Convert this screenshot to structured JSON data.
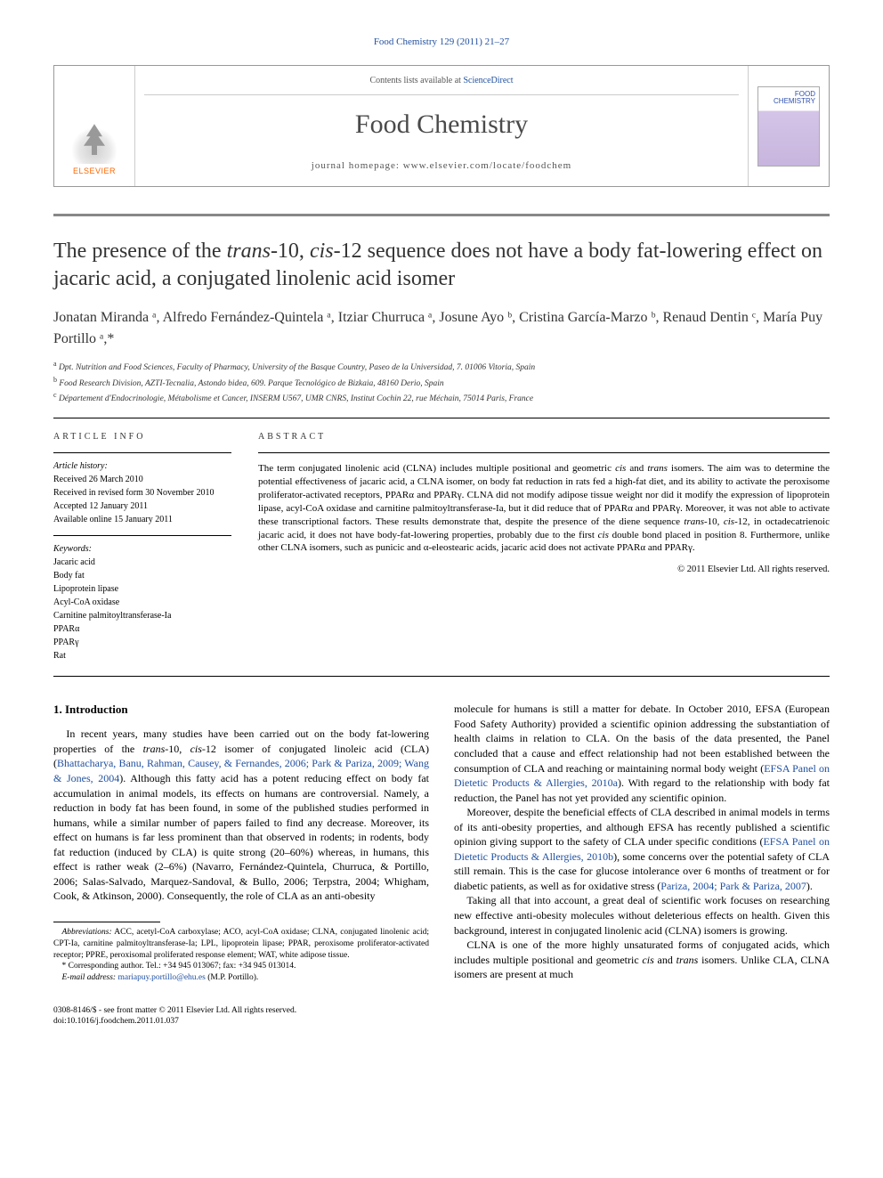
{
  "top_reference": "Food Chemistry 129 (2011) 21–27",
  "header": {
    "contents_prefix": "Contents lists available at ",
    "contents_link": "ScienceDirect",
    "journal": "Food Chemistry",
    "homepage_prefix": "journal homepage: ",
    "homepage_url": "www.elsevier.com/locate/foodchem",
    "publisher_label": "ELSEVIER",
    "cover_title_1": "FOOD",
    "cover_title_2": "CHEMISTRY"
  },
  "title": {
    "pre": "The presence of the ",
    "seq1": "trans",
    "mid1": "-10, ",
    "seq2": "cis",
    "post": "-12 sequence does not have a body fat-lowering effect on jacaric acid, a conjugated linolenic acid isomer"
  },
  "authors_line": "Jonatan Miranda ᵃ, Alfredo Fernández-Quintela ᵃ, Itziar Churruca ᵃ, Josune Ayo ᵇ, Cristina García-Marzo ᵇ, Renaud Dentin ᶜ, María Puy Portillo ᵃ,*",
  "affiliations": [
    {
      "sup": "a",
      "text": "Dpt. Nutrition and Food Sciences, Faculty of Pharmacy, University of the Basque Country, Paseo de la Universidad, 7. 01006 Vitoria, Spain"
    },
    {
      "sup": "b",
      "text": "Food Research Division, AZTI-Tecnalia, Astondo bidea, 609. Parque Tecnológico de Bizkaia, 48160 Derio, Spain"
    },
    {
      "sup": "c",
      "text": "Département d'Endocrinologie, Métabolisme et Cancer, INSERM U567, UMR CNRS, Institut Cochin 22, rue Méchain, 75014 Paris, France"
    }
  ],
  "article_info": {
    "heading": "ARTICLE INFO",
    "history_head": "Article history:",
    "history": [
      "Received 26 March 2010",
      "Received in revised form 30 November 2010",
      "Accepted 12 January 2011",
      "Available online 15 January 2011"
    ],
    "keywords_head": "Keywords:",
    "keywords": [
      "Jacaric acid",
      "Body fat",
      "Lipoprotein lipase",
      "Acyl-CoA oxidase",
      "Carnitine palmitoyltransferase-Ia",
      "PPARα",
      "PPARγ",
      "Rat"
    ]
  },
  "abstract": {
    "heading": "ABSTRACT",
    "text_parts": [
      "The term conjugated linolenic acid (CLNA) includes multiple positional and geometric ",
      "cis",
      " and ",
      "trans",
      " isomers. The aim was to determine the potential effectiveness of jacaric acid, a CLNA isomer, on body fat reduction in rats fed a high-fat diet, and its ability to activate the peroxisome proliferator-activated receptors, PPARα and PPARγ. CLNA did not modify adipose tissue weight nor did it modify the expression of lipoprotein lipase, acyl-CoA oxidase and carnitine palmitoyltransferase-Ia, but it did reduce that of PPARα and PPARγ. Moreover, it was not able to activate these transcriptional factors. These results demonstrate that, despite the presence of the diene sequence ",
      "trans",
      "-10, ",
      "cis",
      "-12, in octadecatrienoic jacaric acid, it does not have body-fat-lowering properties, probably due to the first ",
      "cis",
      " double bond placed in position 8. Furthermore, unlike other CLNA isomers, such as punicic and α-eleostearic acids, jacaric acid does not activate PPARα and PPARγ."
    ],
    "copyright": "© 2011 Elsevier Ltd. All rights reserved."
  },
  "intro": {
    "heading": "1. Introduction",
    "p1_a": "In recent years, many studies have been carried out on the body fat-lowering properties of the ",
    "p1_b": "trans",
    "p1_c": "-10, ",
    "p1_d": "cis",
    "p1_e": "-12 isomer of conjugated linoleic acid (CLA) (",
    "p1_cite1": "Bhattacharya, Banu, Rahman, Causey, & Fernandes, 2006; Park & Pariza, 2009; Wang & Jones, 2004",
    "p1_f": "). Although this fatty acid has a potent reducing effect on body fat accumulation in animal models, its effects on humans are controversial. Namely, a reduction in body fat has been found, in some of the published studies performed in humans, while a similar number of papers failed to find any decrease. Moreover, its effect on humans is far less prominent than that observed in rodents; in rodents, body fat reduction (induced by CLA) is quite strong (20–60%) whereas, in humans, this effect is rather weak (2–6%) (Navarro, Fernández-Quintela, Churruca, & Portillo, 2006; Salas-Salvado, Marquez-Sandoval, & Bullo, 2006; Terpstra, 2004; Whigham, Cook, & Atkinson, 2000). Consequently, the role of CLA as an anti-obesity ",
    "p2_a": "molecule for humans is still a matter for debate. In October 2010, EFSA (European Food Safety Authority) provided a scientific opinion addressing the substantiation of health claims in relation to CLA. On the basis of the data presented, the Panel concluded that a cause and effect relationship had not been established between the consumption of CLA and reaching or maintaining normal body weight (",
    "p2_cite1": "EFSA Panel on Dietetic Products & Allergies, 2010a",
    "p2_b": "). With regard to the relationship with body fat reduction, the Panel has not yet provided any scientific opinion.",
    "p3_a": "Moreover, despite the beneficial effects of CLA described in animal models in terms of its anti-obesity properties, and although EFSA has recently published a scientific opinion giving support to the safety of CLA under specific conditions (",
    "p3_cite1": "EFSA Panel on Dietetic Products & Allergies, 2010b",
    "p3_b": "), some concerns over the potential safety of CLA still remain. This is the case for glucose intolerance over 6 months of treatment or for diabetic patients, as well as for oxidative stress (",
    "p3_cite2": "Pariza, 2004; Park & Pariza, 2007",
    "p3_c": ").",
    "p4": "Taking all that into account, a great deal of scientific work focuses on researching new effective anti-obesity molecules without deleterious effects on health. Given this background, interest in conjugated linolenic acid (CLNA) isomers is growing.",
    "p5_a": "CLNA is one of the more highly unsaturated forms of conjugated acids, which includes multiple positional and geometric ",
    "p5_b": "cis",
    "p5_c": " and ",
    "p5_d": "trans",
    "p5_e": " isomers. Unlike CLA, CLNA isomers are present at much"
  },
  "footnotes": {
    "abbrev_label": "Abbreviations:",
    "abbrev_text": " ACC, acetyl-CoA carboxylase; ACO, acyl-CoA oxidase; CLNA, conjugated linolenic acid; CPT-Ia, carnitine palmitoyltransferase-Ia; LPL, lipoprotein lipase; PPAR, peroxisome proliferator-activated receptor; PPRE, peroxisomal proliferated response element; WAT, white adipose tissue.",
    "corr_marker": "*",
    "corr_text": " Corresponding author. Tel.: +34 945 013067; fax: +34 945 013014.",
    "email_label": "E-mail address:",
    "email": " mariapuy.portillo@ehu.es",
    "email_suffix": " (M.P. Portillo)."
  },
  "bottom": {
    "line1": "0308-8146/$ - see front matter © 2011 Elsevier Ltd. All rights reserved.",
    "line2": "doi:10.1016/j.foodchem.2011.01.037"
  },
  "colors": {
    "link": "#2050a0",
    "elsevier_orange": "#ff6600",
    "text": "#000000",
    "gray_title": "#4a4a4a"
  }
}
